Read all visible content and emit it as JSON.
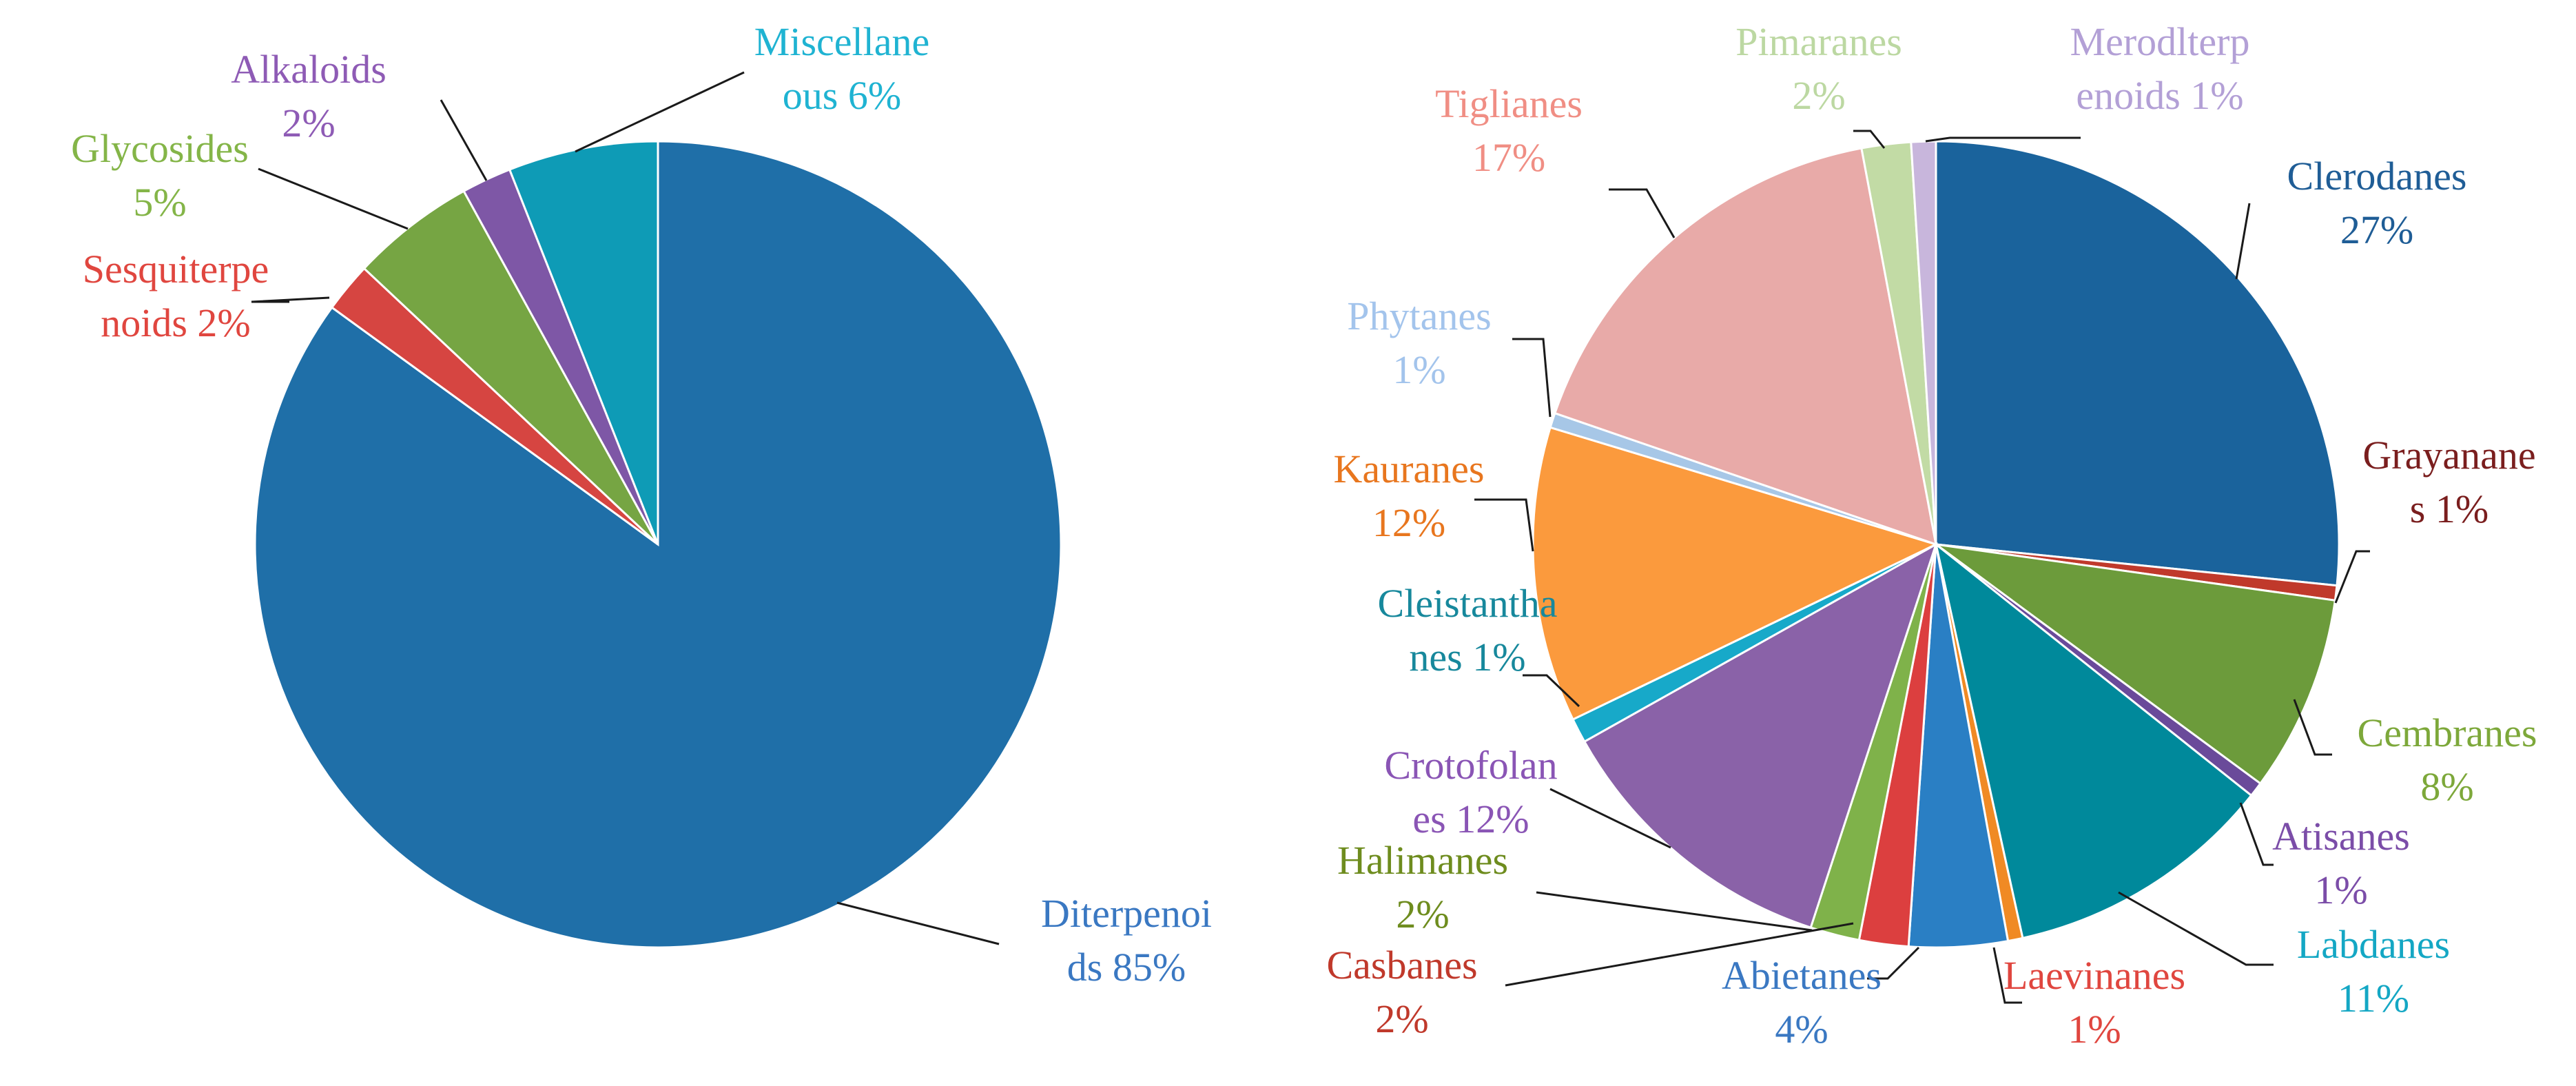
{
  "chart_data": [
    {
      "type": "pie",
      "title": "",
      "categories": [
        "Diterpenoids",
        "Sesquiterpenoids",
        "Glycosides",
        "Alkaloids",
        "Miscellaneous"
      ],
      "values": [
        85,
        2,
        5,
        2,
        6
      ],
      "colors": [
        "#1f6fa8",
        "#d64541",
        "#76a543",
        "#7e57a6",
        "#0e9bb6"
      ],
      "labels": [
        {
          "lines": [
            "Diterpenoi",
            "ds 85%"
          ],
          "color": "#3a78c2"
        },
        {
          "lines": [
            "Sesquiterpe",
            "noids 2%"
          ],
          "color": "#e0463f"
        },
        {
          "lines": [
            "Glycosides",
            "5%"
          ],
          "color": "#84b548"
        },
        {
          "lines": [
            "Alkaloids",
            "2%"
          ],
          "color": "#8e5bb5"
        },
        {
          "lines": [
            "Miscellane",
            "ous 6%"
          ],
          "color": "#1fb3d2"
        }
      ]
    },
    {
      "type": "pie",
      "title": "",
      "categories": [
        "Clerodanes",
        "Grayananes",
        "Cembranes",
        "Atisanes",
        "Labdanes",
        "Laevinanes",
        "Abietanes",
        "Casbanes",
        "Halimanes",
        "Crotofolanes",
        "Cleistanthanes",
        "Kauranes",
        "Phytanes",
        "Tiglianes",
        "Pimaranes",
        "Merodlterpenoids"
      ],
      "values": [
        27,
        0.6,
        8,
        0.6,
        11,
        0.6,
        4,
        2,
        2,
        12,
        1,
        12,
        0.6,
        17,
        2,
        1
      ],
      "colors": [
        "#1a639c",
        "#c0392b",
        "#6c9b3b",
        "#6a4a9a",
        "#00899b",
        "#f08a24",
        "#2a7fc4",
        "#dc3f3f",
        "#7fb24a",
        "#8a62a8",
        "#17a9c9",
        "#fb9a3d",
        "#a7c7e7",
        "#e8aaa8",
        "#c2dba5",
        "#c8b6dc"
      ],
      "labels": [
        {
          "lines": [
            "Clerodanes",
            "27%"
          ],
          "color": "#1f5d96"
        },
        {
          "lines": [
            "Grayanane",
            "s 1%"
          ],
          "color": "#7a1e1e"
        },
        {
          "lines": [
            "Cembranes",
            "8%"
          ],
          "color": "#7da83a"
        },
        {
          "lines": [
            "Atisanes",
            "1%"
          ],
          "color": "#7b4da8"
        },
        {
          "lines": [
            "Labdanes",
            "11%"
          ],
          "color": "#14a7c4"
        },
        {
          "lines": [
            "Laevinanes",
            "1%"
          ],
          "color": "#e0463f"
        },
        {
          "lines": [
            "Abietanes",
            "4%"
          ],
          "color": "#3a78c2"
        },
        {
          "lines": [
            "Casbanes",
            "2%"
          ],
          "color": "#c0392b"
        },
        {
          "lines": [
            "Halimanes",
            "2%"
          ],
          "color": "#6e8c1e"
        },
        {
          "lines": [
            "Crotofolan",
            "es 12%"
          ],
          "color": "#8a55b5"
        },
        {
          "lines": [
            "Cleistantha",
            "nes 1%"
          ],
          "color": "#17889c"
        },
        {
          "lines": [
            "Kauranes",
            "12%"
          ],
          "color": "#e8761e"
        },
        {
          "lines": [
            "Phytanes",
            "1%"
          ],
          "color": "#a3c4ec"
        },
        {
          "lines": [
            "Tiglianes",
            "17%"
          ],
          "color": "#f08e84"
        },
        {
          "lines": [
            "Pimaranes",
            "2%"
          ],
          "color": "#bcd8a2"
        },
        {
          "lines": [
            "Merodlterp",
            "enoids 1%"
          ],
          "color": "#b3a0d6"
        }
      ]
    }
  ]
}
